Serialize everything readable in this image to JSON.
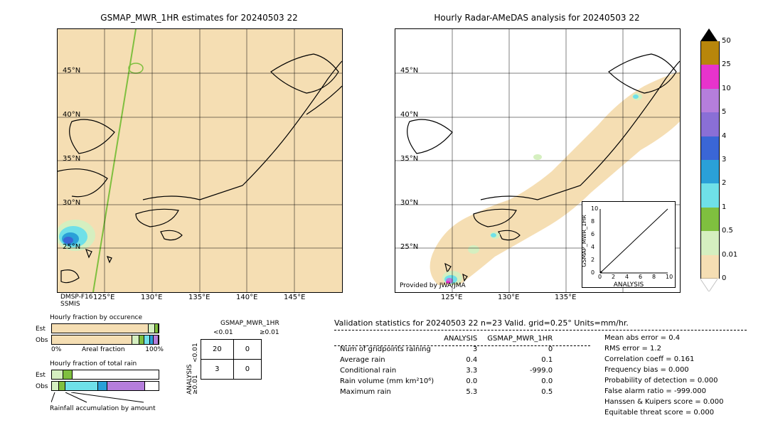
{
  "titles": {
    "left": "GSMAP_MWR_1HR estimates for 20240503 22",
    "right": "Hourly Radar-AMeDAS analysis for 20240503 22"
  },
  "map": {
    "xlabels": [
      "125°E",
      "130°E",
      "135°E",
      "140°E",
      "145°E"
    ],
    "ylabels": [
      "25°N",
      "30°N",
      "35°N",
      "40°N",
      "45°N"
    ],
    "xlabels_right": [
      "125°E",
      "130°E",
      "135°E"
    ],
    "left_bg": "#f5deb3",
    "right_bg": "#ffffff",
    "land_stroke": "#000000",
    "swath_stroke": "#7fbf3f",
    "overlay_tan": "#f5deb3",
    "overlay_green": "#d5efc0",
    "overlay_cyan": "#6fe0e8",
    "overlay_blue": "#3a66d6",
    "overlay_purple": "#b57edc",
    "overlay_magenta": "#e733cc",
    "attribution": "Provided by JWA/JMA",
    "sensor_label1": "DMSP-F16",
    "sensor_label2": "SSMIS"
  },
  "colorbar": {
    "top_triangle": "#000000",
    "segments": [
      {
        "color": "#b8860b",
        "label": "50"
      },
      {
        "color": "#e733cc",
        "label": "25"
      },
      {
        "color": "#b57edc",
        "label": "10"
      },
      {
        "color": "#8a6fd6",
        "label": "5"
      },
      {
        "color": "#3a66d6",
        "label": "4"
      },
      {
        "color": "#2aa0d8",
        "label": "3"
      },
      {
        "color": "#6fe0e8",
        "label": "2"
      },
      {
        "color": "#7fbf3f",
        "label": "1"
      },
      {
        "color": "#d5efc0",
        "label": "0.5"
      },
      {
        "color": "#f5deb3",
        "label": "0.01"
      }
    ],
    "bottom_triangle": "#ffffff",
    "bottom_label": "0"
  },
  "bars": {
    "occ_title": "Hourly fraction by occurence",
    "tot_title": "Hourly fraction of total rain",
    "accum_title": "Rainfall accumulation by amount",
    "row_labels": [
      "Est",
      "Obs"
    ],
    "x0": "0%",
    "xlabel": "Areal fraction",
    "x1": "100%",
    "occ_est": [
      {
        "w": 0.92,
        "c": "#f5deb3"
      },
      {
        "w": 0.05,
        "c": "#d5efc0"
      },
      {
        "w": 0.03,
        "c": "#7fbf3f"
      }
    ],
    "occ_obs": [
      {
        "w": 0.78,
        "c": "#f5deb3"
      },
      {
        "w": 0.06,
        "c": "#d5efc0"
      },
      {
        "w": 0.04,
        "c": "#7fbf3f"
      },
      {
        "w": 0.05,
        "c": "#6fe0e8"
      },
      {
        "w": 0.03,
        "c": "#2aa0d8"
      },
      {
        "w": 0.04,
        "c": "#b57edc"
      }
    ],
    "tot_est": [
      {
        "w": 0.1,
        "c": "#d5efc0"
      },
      {
        "w": 0.08,
        "c": "#7fbf3f"
      }
    ],
    "tot_obs": [
      {
        "w": 0.06,
        "c": "#d5efc0"
      },
      {
        "w": 0.05,
        "c": "#7fbf3f"
      },
      {
        "w": 0.3,
        "c": "#6fe0e8"
      },
      {
        "w": 0.08,
        "c": "#2aa0d8"
      },
      {
        "w": 0.35,
        "c": "#b57edc"
      }
    ]
  },
  "conf": {
    "title": "GSMAP_MWR_1HR",
    "col1": "<0.01",
    "col2": "≥0.01",
    "rowlabel": "ANALYSIS",
    "r1": "<0.01",
    "r2": "≥0.01",
    "v11": "20",
    "v12": "0",
    "v21": "3",
    "v22": "0"
  },
  "stats": {
    "title": "Validation statistics for 20240503 22  n=23 Valid. grid=0.25° Units=mm/hr.",
    "col1": "ANALYSIS",
    "col2": "GSMAP_MWR_1HR",
    "rows": [
      {
        "label": "Num of gridpoints raining",
        "a": "3",
        "b": "0"
      },
      {
        "label": "Average rain",
        "a": "0.4",
        "b": "0.1"
      },
      {
        "label": "Conditional rain",
        "a": "3.3",
        "b": "-999.0"
      },
      {
        "label": "Rain volume (mm km²10⁶)",
        "a": "0.0",
        "b": "0.0"
      },
      {
        "label": "Maximum rain",
        "a": "5.3",
        "b": "0.5"
      }
    ],
    "right": [
      "Mean abs error =    0.4",
      "RMS error =    1.2",
      "Correlation coeff =  0.161",
      "Frequency bias =  0.000",
      "Probability of detection =  0.000",
      "False alarm ratio = -999.000",
      "Hanssen & Kuipers score =  0.000",
      "Equitable threat score =  0.000"
    ]
  },
  "scatter": {
    "xlabel": "ANALYSIS",
    "ylabel": "GSMAP_MWR_1HR",
    "ticks": [
      "0",
      "2",
      "4",
      "6",
      "8",
      "10"
    ],
    "max": 10
  }
}
